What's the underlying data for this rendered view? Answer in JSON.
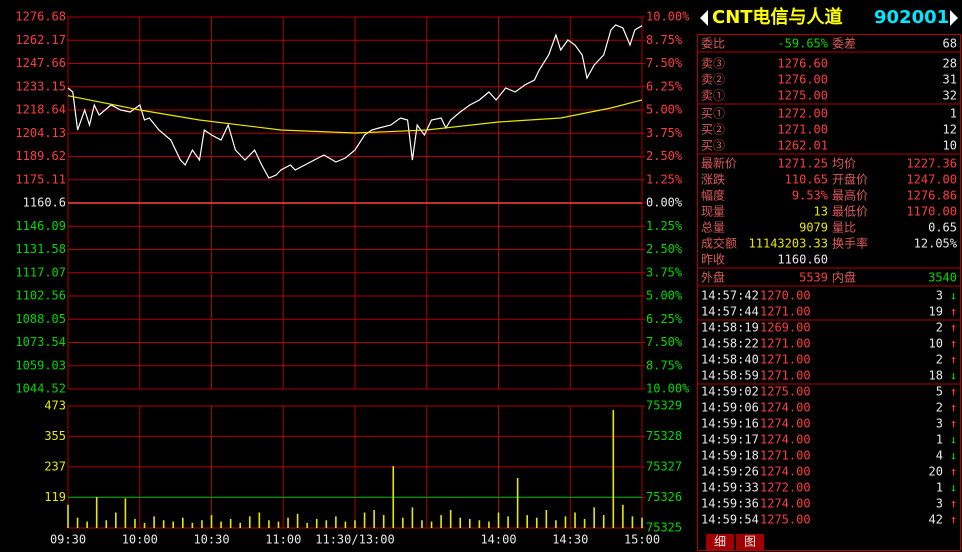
{
  "chart_data": [
    {
      "type": "line",
      "xlim": [
        0,
        240
      ],
      "xticks": [
        0,
        30,
        60,
        90,
        120,
        150,
        180,
        210,
        240
      ],
      "ylim": [
        1044.52,
        1276.68
      ],
      "yticks": [
        1276.68,
        1262.17,
        1247.66,
        1233.15,
        1218.64,
        1204.13,
        1189.62,
        1175.11,
        1160.6,
        1146.09,
        1131.58,
        1117.07,
        1102.56,
        1088.05,
        1073.54,
        1059.03,
        1044.52
      ],
      "y2lim": [
        -10,
        10
      ],
      "y2ticks": [
        {
          "value": 10,
          "label": "10.00%"
        },
        {
          "value": 8.75,
          "label": "8.75%"
        },
        {
          "value": 7.5,
          "label": "7.50%"
        },
        {
          "value": 6.25,
          "label": "6.25%"
        },
        {
          "value": 5,
          "label": "5.00%"
        },
        {
          "value": 3.75,
          "label": "3.75%"
        },
        {
          "value": 2.5,
          "label": "2.50%"
        },
        {
          "value": 1.25,
          "label": "1.25%"
        },
        {
          "value": 0,
          "label": "0.00%"
        },
        {
          "value": -1.25,
          "label": "1.25%"
        },
        {
          "value": -2.5,
          "label": "2.50%"
        },
        {
          "value": -3.75,
          "label": "3.75%"
        },
        {
          "value": -5,
          "label": "5.00%"
        },
        {
          "value": -6.25,
          "label": "6.25%"
        },
        {
          "value": -7.5,
          "label": "7.50%"
        },
        {
          "value": -8.75,
          "label": "8.75%"
        },
        {
          "value": -10,
          "label": "10.00%"
        }
      ],
      "grid": true,
      "series": [
        {
          "color": "#ffffff",
          "x": [
            0,
            2,
            4,
            7,
            9,
            11,
            13,
            18,
            22,
            26,
            30,
            32,
            34,
            38,
            43,
            47,
            49,
            52,
            55,
            57,
            60,
            64,
            67,
            70,
            74,
            78,
            81,
            84,
            87,
            89,
            93,
            95,
            99,
            103,
            107,
            112,
            116,
            120,
            124,
            127,
            130,
            135,
            139,
            142,
            144,
            146,
            149,
            152,
            156,
            158,
            160,
            164,
            168,
            172,
            176,
            179,
            183,
            187,
            191,
            195,
            197,
            201,
            204,
            206,
            209,
            212,
            215,
            217,
            220,
            224,
            227,
            229,
            232,
            235,
            237,
            240
          ],
          "values": [
            1232.37,
            1229.87,
            1206.16,
            1218.64,
            1209.28,
            1221.76,
            1215.52,
            1221.76,
            1218.64,
            1217.39,
            1221.76,
            1212.4,
            1213.65,
            1206.16,
            1199.92,
            1187.43,
            1184.31,
            1193.67,
            1187.43,
            1206.16,
            1203.04,
            1199.92,
            1209.28,
            1193.67,
            1187.43,
            1193.67,
            1184.31,
            1176.2,
            1178.07,
            1181.19,
            1184.31,
            1181.19,
            1184.31,
            1187.43,
            1190.55,
            1186.19,
            1188.68,
            1193.67,
            1203.04,
            1206.16,
            1207.4,
            1209.28,
            1213.65,
            1212.4,
            1187.43,
            1209.28,
            1203.04,
            1212.4,
            1213.65,
            1207.4,
            1212.4,
            1217.39,
            1221.76,
            1224.88,
            1229.87,
            1224.88,
            1232.37,
            1229.87,
            1234.24,
            1237.36,
            1243.6,
            1252.96,
            1265.45,
            1256.08,
            1262.33,
            1259.21,
            1252.96,
            1238.61,
            1246.72,
            1252.96,
            1268.57,
            1271.69,
            1269.81,
            1259.21,
            1268.57,
            1271.25
          ]
        },
        {
          "color": "#e8e800",
          "x": [
            0,
            30,
            55,
            89,
            120,
            150,
            180,
            206,
            227,
            240
          ],
          "values": [
            1227.58,
            1218.64,
            1212.4,
            1206.16,
            1204.28,
            1206.16,
            1211.15,
            1213.65,
            1219.89,
            1224.88
          ]
        }
      ]
    },
    {
      "type": "bar",
      "color": "#e8e800",
      "xlim": [
        0,
        240
      ],
      "xticks": [
        {
          "value": 0,
          "label": "09:30"
        },
        {
          "value": 30,
          "label": "10:00"
        },
        {
          "value": 60,
          "label": "10:30"
        },
        {
          "value": 90,
          "label": "11:00"
        },
        {
          "value": 120,
          "label": "11:30/13:00"
        },
        {
          "value": 150,
          "label": null
        },
        {
          "value": 180,
          "label": "14:00"
        },
        {
          "value": 210,
          "label": "14:30"
        },
        {
          "value": 240,
          "label": "15:00"
        }
      ],
      "ylim": [
        0,
        473
      ],
      "yticks": [
        473,
        355,
        237,
        119
      ],
      "y2lim": [
        75325,
        75329
      ],
      "y2ticks": [
        75329,
        75328,
        75327,
        75326,
        75325
      ],
      "x": [
        0,
        4,
        8,
        12,
        16,
        20,
        24,
        28,
        32,
        36,
        40,
        44,
        48,
        52,
        56,
        60,
        64,
        68,
        72,
        76,
        80,
        84,
        88,
        92,
        96,
        100,
        104,
        108,
        112,
        116,
        120,
        124,
        128,
        132,
        136,
        140,
        144,
        148,
        152,
        156,
        160,
        164,
        168,
        172,
        176,
        180,
        184,
        188,
        192,
        196,
        200,
        204,
        208,
        212,
        216,
        220,
        224,
        228,
        232,
        236,
        240
      ],
      "values": [
        90,
        40,
        25,
        120,
        30,
        60,
        115,
        35,
        20,
        45,
        30,
        25,
        40,
        20,
        30,
        50,
        25,
        35,
        20,
        45,
        60,
        30,
        25,
        40,
        55,
        20,
        35,
        30,
        45,
        25,
        30,
        60,
        70,
        50,
        240,
        40,
        80,
        30,
        25,
        50,
        70,
        40,
        35,
        30,
        25,
        60,
        45,
        194,
        50,
        40,
        70,
        30,
        45,
        60,
        35,
        80,
        50,
        457,
        90,
        45,
        40
      ]
    }
  ],
  "panel": {
    "title": "CNT电信与人道",
    "code": "902001",
    "commission": [
      "委比",
      "-59.65%",
      "委差",
      "68"
    ],
    "asks": [
      [
        "卖③",
        "1276.60",
        "28"
      ],
      [
        "卖②",
        "1276.00",
        "31"
      ],
      [
        "卖①",
        "1275.00",
        "32"
      ]
    ],
    "bids": [
      [
        "买①",
        "1272.00",
        "1"
      ],
      [
        "买②",
        "1271.00",
        "12"
      ],
      [
        "买③",
        "1262.01",
        "10"
      ]
    ],
    "stats": [
      [
        "最新价",
        "1271.25",
        "均价",
        "1227.36"
      ],
      [
        "涨跌",
        "110.65",
        "开盘价",
        "1247.00"
      ],
      [
        "幅度",
        "9.53%",
        "最高价",
        "1276.86"
      ],
      [
        "现量",
        "13",
        "最低价",
        "1170.00"
      ],
      [
        "总量",
        "9079",
        "量比",
        "0.65"
      ],
      [
        "成交额",
        "11143203.33",
        "换手率",
        "12.05%"
      ],
      [
        "昨收",
        "1160.60"
      ]
    ],
    "outer": [
      "外盘",
      "5539",
      "内盘",
      "3540"
    ],
    "trade_groups": [
      [
        [
          "14:57:42",
          "1270.00",
          "3",
          "↓"
        ],
        [
          "14:57:44",
          "1271.00",
          "19",
          "↑"
        ]
      ],
      [
        [
          "14:58:19",
          "1269.00",
          "2",
          "↑"
        ],
        [
          "14:58:22",
          "1271.00",
          "10",
          "↑"
        ],
        [
          "14:58:40",
          "1271.00",
          "2",
          "↑"
        ],
        [
          "14:58:59",
          "1271.00",
          "18",
          "↓"
        ]
      ],
      [
        [
          "14:59:02",
          "1275.00",
          "5",
          "↑"
        ],
        [
          "14:59:06",
          "1274.00",
          "2",
          "↑"
        ],
        [
          "14:59:16",
          "1274.00",
          "3",
          "↑"
        ],
        [
          "14:59:17",
          "1274.00",
          "1",
          "↓"
        ],
        [
          "14:59:18",
          "1271.00",
          "4",
          "↓"
        ],
        [
          "14:59:26",
          "1274.00",
          "20",
          "↑"
        ],
        [
          "14:59:33",
          "1272.00",
          "1",
          "↓"
        ],
        [
          "14:59:36",
          "1274.00",
          "3",
          "↑"
        ],
        [
          "14:59:54",
          "1275.00",
          "42",
          "↑"
        ]
      ]
    ],
    "tabs": [
      "细",
      "图"
    ]
  }
}
